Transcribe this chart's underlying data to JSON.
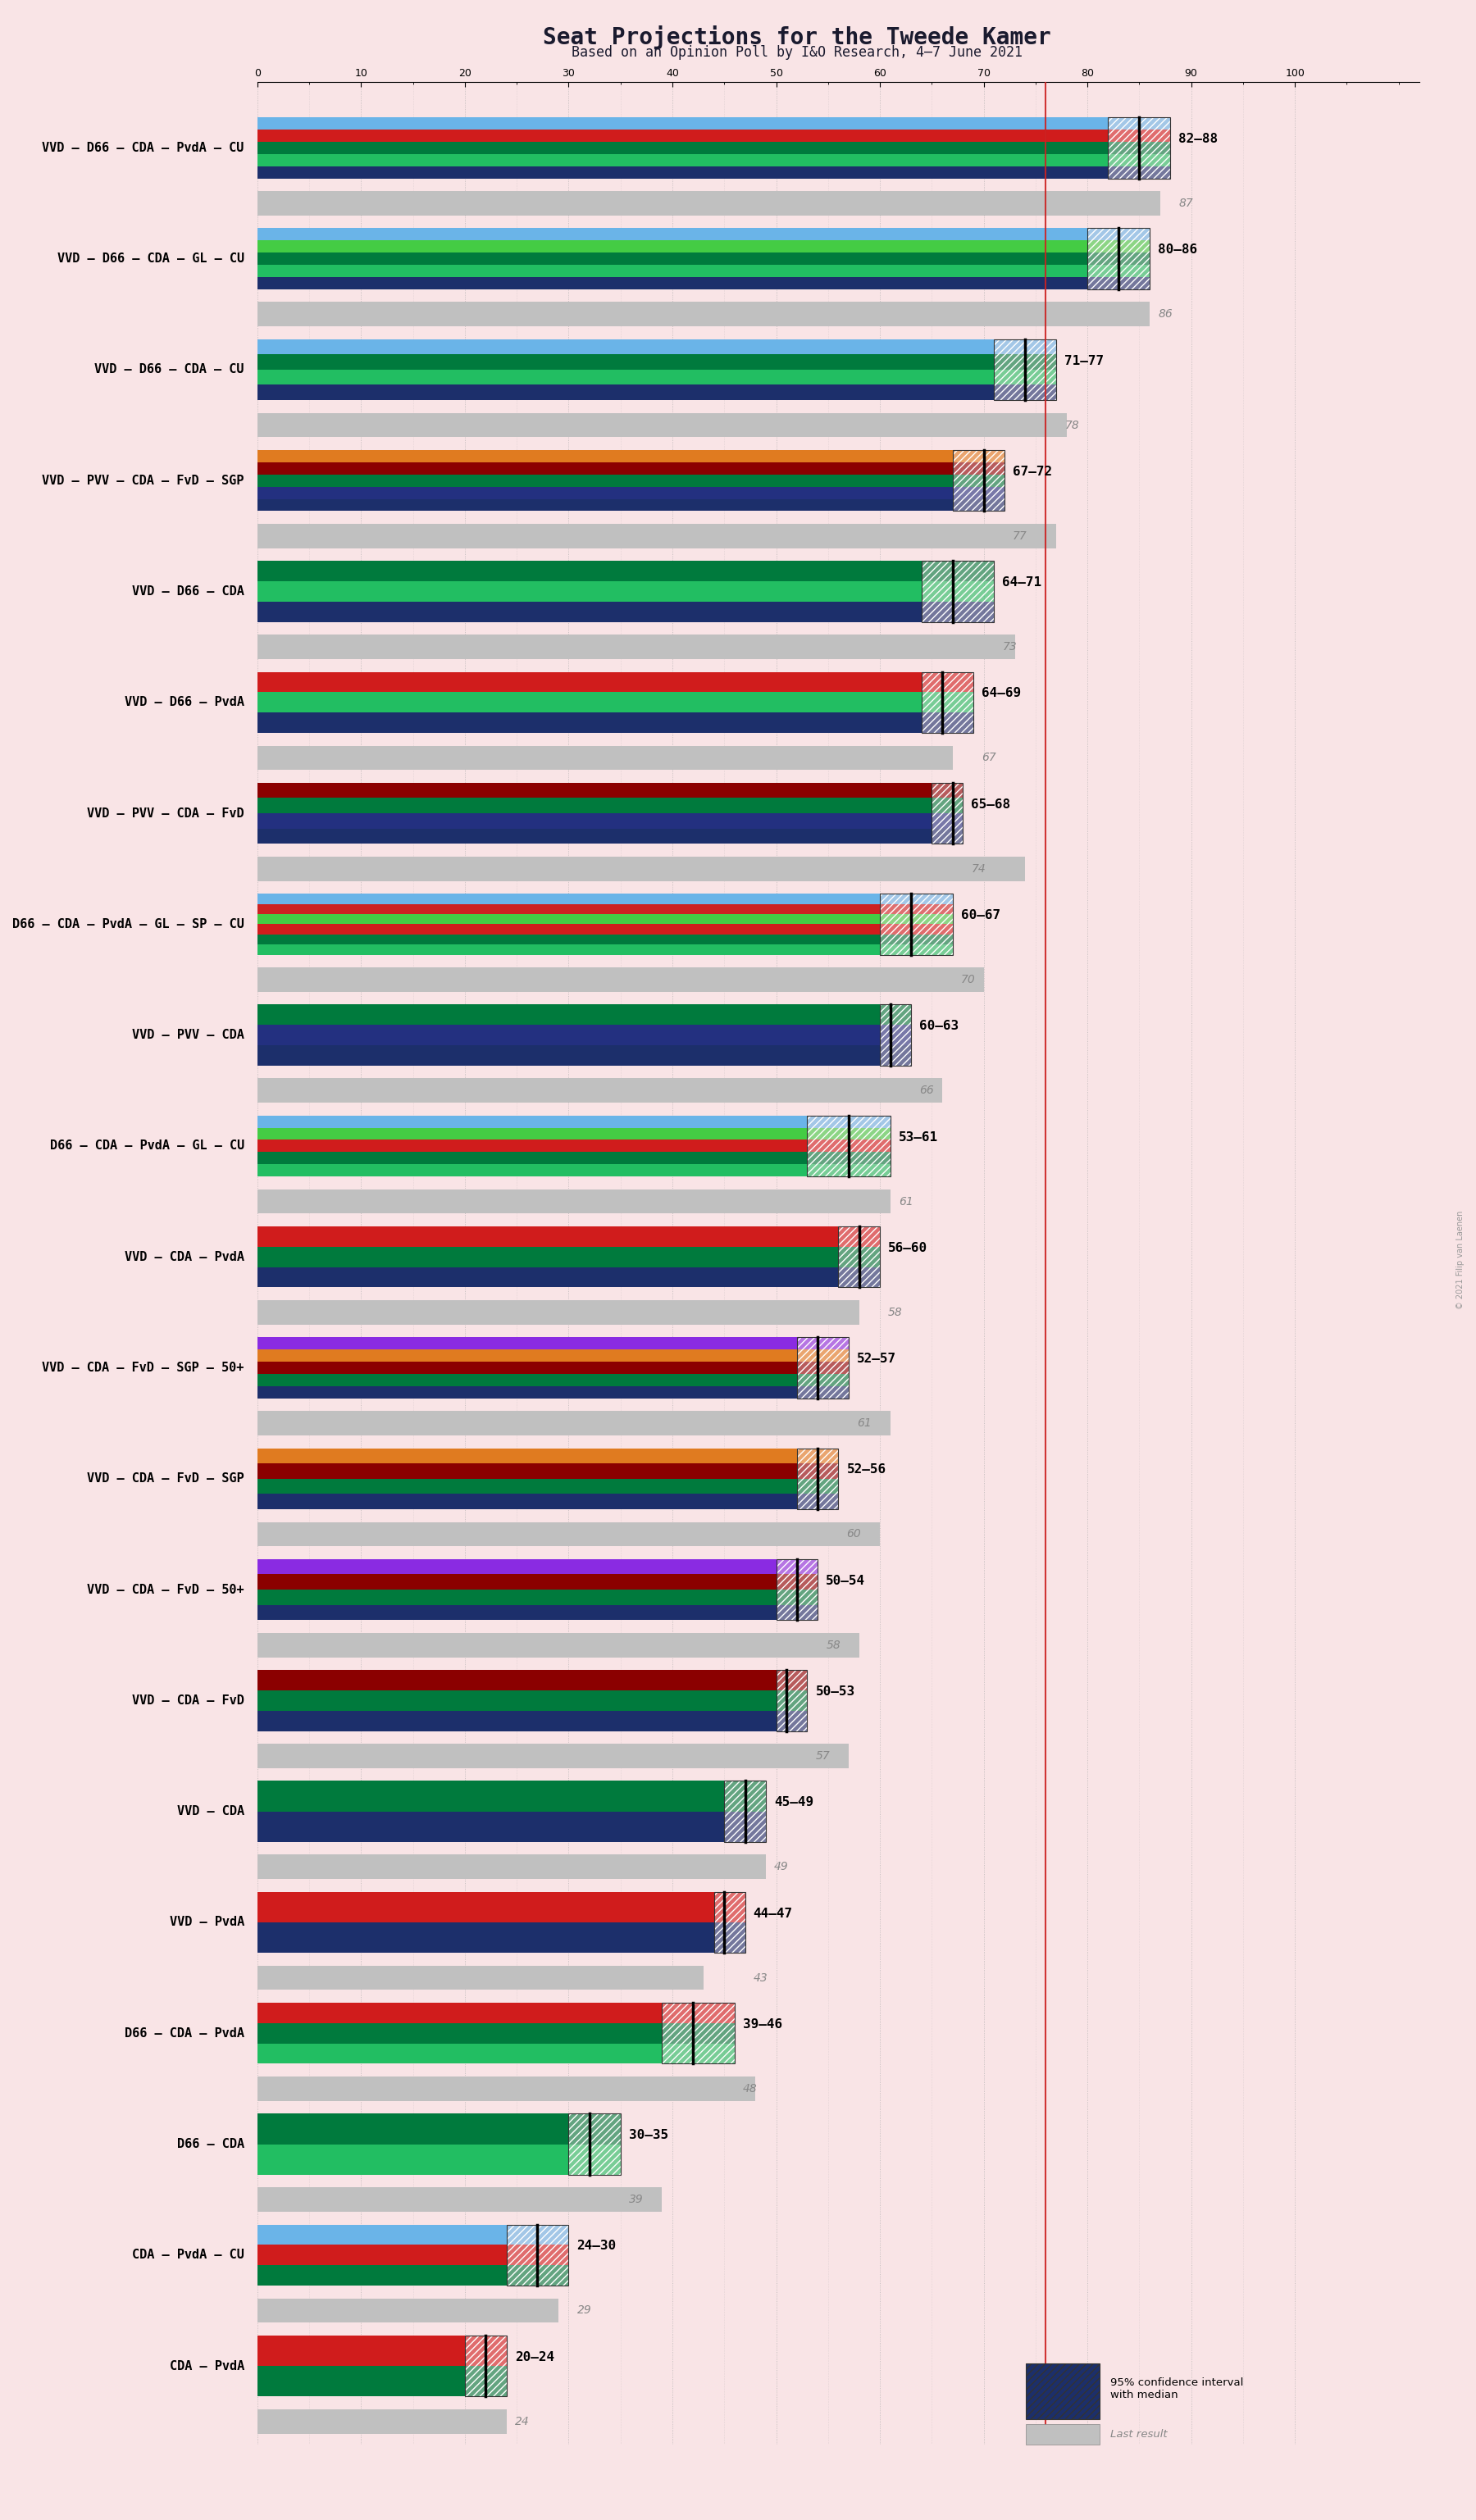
{
  "title": "Seat Projections for the Tweede Kamer",
  "subtitle": "Based on an Opinion Poll by I&O Research, 4–7 June 2021",
  "background_color": "#f9e4e6",
  "coalitions": [
    {
      "name": "VVD – D66 – CDA – PvdA – CU",
      "parties": [
        "VVD",
        "D66",
        "CDA",
        "PvdA",
        "CU"
      ],
      "ci_low": 82,
      "ci_high": 88,
      "median": 85,
      "last": 87
    },
    {
      "name": "VVD – D66 – CDA – GL – CU",
      "parties": [
        "VVD",
        "D66",
        "CDA",
        "GL",
        "CU"
      ],
      "ci_low": 80,
      "ci_high": 86,
      "median": 83,
      "last": 86
    },
    {
      "name": "VVD – D66 – CDA – CU",
      "parties": [
        "VVD",
        "D66",
        "CDA",
        "CU"
      ],
      "ci_low": 71,
      "ci_high": 77,
      "median": 74,
      "last": 78
    },
    {
      "name": "VVD – PVV – CDA – FvD – SGP",
      "parties": [
        "VVD",
        "PVV",
        "CDA",
        "FvD",
        "SGP"
      ],
      "ci_low": 67,
      "ci_high": 72,
      "median": 70,
      "last": 77
    },
    {
      "name": "VVD – D66 – CDA",
      "parties": [
        "VVD",
        "D66",
        "CDA"
      ],
      "ci_low": 64,
      "ci_high": 71,
      "median": 67,
      "last": 73
    },
    {
      "name": "VVD – D66 – PvdA",
      "parties": [
        "VVD",
        "D66",
        "PvdA"
      ],
      "ci_low": 64,
      "ci_high": 69,
      "median": 66,
      "last": 67
    },
    {
      "name": "VVD – PVV – CDA – FvD",
      "parties": [
        "VVD",
        "PVV",
        "CDA",
        "FvD"
      ],
      "ci_low": 65,
      "ci_high": 68,
      "median": 67,
      "last": 74
    },
    {
      "name": "D66 – CDA – PvdA – GL – SP – CU",
      "parties": [
        "D66",
        "CDA",
        "PvdA",
        "GL",
        "SP",
        "CU"
      ],
      "ci_low": 60,
      "ci_high": 67,
      "median": 63,
      "last": 70
    },
    {
      "name": "VVD – PVV – CDA",
      "parties": [
        "VVD",
        "PVV",
        "CDA"
      ],
      "ci_low": 60,
      "ci_high": 63,
      "median": 61,
      "last": 66
    },
    {
      "name": "D66 – CDA – PvdA – GL – CU",
      "parties": [
        "D66",
        "CDA",
        "PvdA",
        "GL",
        "CU"
      ],
      "ci_low": 53,
      "ci_high": 61,
      "median": 57,
      "last": 61
    },
    {
      "name": "VVD – CDA – PvdA",
      "parties": [
        "VVD",
        "CDA",
        "PvdA"
      ],
      "ci_low": 56,
      "ci_high": 60,
      "median": 58,
      "last": 58
    },
    {
      "name": "VVD – CDA – FvD – SGP – 50+",
      "parties": [
        "VVD",
        "CDA",
        "FvD",
        "SGP",
        "50+"
      ],
      "ci_low": 52,
      "ci_high": 57,
      "median": 54,
      "last": 61
    },
    {
      "name": "VVD – CDA – FvD – SGP",
      "parties": [
        "VVD",
        "CDA",
        "FvD",
        "SGP"
      ],
      "ci_low": 52,
      "ci_high": 56,
      "median": 54,
      "last": 60
    },
    {
      "name": "VVD – CDA – FvD – 50+",
      "parties": [
        "VVD",
        "CDA",
        "FvD",
        "50+"
      ],
      "ci_low": 50,
      "ci_high": 54,
      "median": 52,
      "last": 58
    },
    {
      "name": "VVD – CDA – FvD",
      "parties": [
        "VVD",
        "CDA",
        "FvD"
      ],
      "ci_low": 50,
      "ci_high": 53,
      "median": 51,
      "last": 57
    },
    {
      "name": "VVD – CDA",
      "parties": [
        "VVD",
        "CDA"
      ],
      "ci_low": 45,
      "ci_high": 49,
      "median": 47,
      "last": 49
    },
    {
      "name": "VVD – PvdA",
      "parties": [
        "VVD",
        "PvdA"
      ],
      "ci_low": 44,
      "ci_high": 47,
      "median": 45,
      "last": 43
    },
    {
      "name": "D66 – CDA – PvdA",
      "parties": [
        "D66",
        "CDA",
        "PvdA"
      ],
      "ci_low": 39,
      "ci_high": 46,
      "median": 42,
      "last": 48
    },
    {
      "name": "D66 – CDA",
      "parties": [
        "D66",
        "CDA"
      ],
      "ci_low": 30,
      "ci_high": 35,
      "median": 32,
      "last": 39
    },
    {
      "name": "CDA – PvdA – CU",
      "parties": [
        "CDA",
        "PvdA",
        "CU"
      ],
      "ci_low": 24,
      "ci_high": 30,
      "median": 27,
      "last": 29
    },
    {
      "name": "CDA – PvdA",
      "parties": [
        "CDA",
        "PvdA"
      ],
      "ci_low": 20,
      "ci_high": 24,
      "median": 22,
      "last": 24
    }
  ],
  "party_colors": {
    "VVD": "#1c2f6b",
    "D66": "#22be62",
    "CDA": "#007a3d",
    "PvdA": "#d01c1c",
    "CU": "#6ab4e8",
    "GL": "#44cc44",
    "PVV": "#233080",
    "FvD": "#8b0000",
    "SGP": "#e07b20",
    "SP": "#cc2222",
    "50+": "#8a2be2"
  },
  "majority_line": 76,
  "xmin": 0,
  "xmax": 100
}
